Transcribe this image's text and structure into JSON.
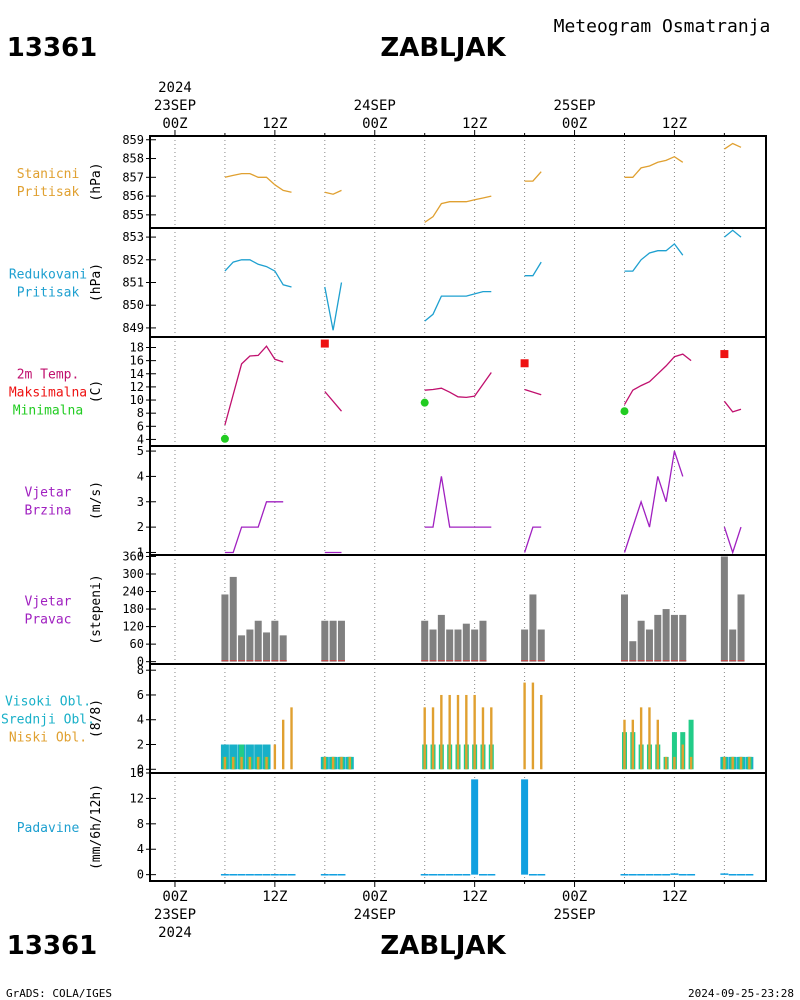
{
  "header": {
    "station_id": "13361",
    "station_name": "ZABLJAK",
    "product": "Meteogram Osmatranja"
  },
  "footer": {
    "station_id": "13361",
    "station_name": "ZABLJAK",
    "credit": "GrADS: COLA/IGES",
    "timestamp": "2024-09-25-23:28"
  },
  "time_axis": {
    "year": "2024",
    "top_labels": [
      {
        "hour": 0,
        "label": "00Z",
        "date": "23SEP",
        "year": "2024"
      },
      {
        "hour": 12,
        "label": "12Z"
      },
      {
        "hour": 24,
        "label": "00Z",
        "date": "24SEP"
      },
      {
        "hour": 36,
        "label": "12Z"
      },
      {
        "hour": 48,
        "label": "00Z",
        "date": "25SEP"
      },
      {
        "hour": 60,
        "label": "12Z"
      }
    ],
    "bottom_labels": [
      {
        "hour": 0,
        "label": "00Z",
        "date": "23SEP",
        "year": "2024"
      },
      {
        "hour": 12,
        "label": "12Z"
      },
      {
        "hour": 24,
        "label": "00Z",
        "date": "24SEP"
      },
      {
        "hour": 36,
        "label": "12Z"
      },
      {
        "hour": 48,
        "label": "00Z",
        "date": "25SEP"
      },
      {
        "hour": 60,
        "label": "12Z"
      }
    ],
    "range_hours": [
      -3,
      71
    ]
  },
  "colors": {
    "station_pressure": "#e0a030",
    "sea_pressure": "#1ea0d0",
    "temp": "#c0106e",
    "tmax": "#ee1111",
    "tmin": "#22cc22",
    "wind": "#a020c0",
    "wind_bar": "#808080",
    "high_cloud": "#18b0c8",
    "mid_cloud": "#22cc88",
    "low_cloud": "#e0a030",
    "precip": "#10a0e0"
  },
  "chart_data": [
    {
      "type": "line",
      "id": "p1",
      "labels": [
        "Stanicni",
        "Pritisak"
      ],
      "label_colors": [
        "#e0a030",
        "#e0a030"
      ],
      "unit": "(hPa)",
      "ylim": [
        854.3,
        859.2
      ],
      "ticks": [
        855,
        856,
        857,
        858,
        859
      ],
      "series": [
        {
          "color": "#e0a030",
          "segments": [
            [
              [
                6,
                857.0
              ],
              [
                7,
                857.1
              ],
              [
                8,
                857.2
              ],
              [
                9,
                857.2
              ],
              [
                10,
                857.0
              ],
              [
                11,
                857.0
              ],
              [
                12,
                856.6
              ],
              [
                13,
                856.3
              ],
              [
                14,
                856.2
              ]
            ],
            [
              [
                18,
                856.2
              ],
              [
                19,
                856.1
              ],
              [
                20,
                856.3
              ]
            ],
            [
              [
                30,
                854.6
              ],
              [
                31,
                854.9
              ],
              [
                32,
                855.6
              ],
              [
                33,
                855.7
              ],
              [
                34,
                855.7
              ],
              [
                35,
                855.7
              ],
              [
                36,
                855.8
              ],
              [
                37,
                855.9
              ],
              [
                38,
                856.0
              ]
            ],
            [
              [
                42,
                856.8
              ],
              [
                43,
                856.8
              ],
              [
                44,
                857.3
              ]
            ],
            [
              [
                54,
                857.0
              ],
              [
                55,
                857.0
              ],
              [
                56,
                857.5
              ],
              [
                57,
                857.6
              ],
              [
                58,
                857.8
              ],
              [
                59,
                857.9
              ],
              [
                60,
                858.1
              ],
              [
                61,
                857.8
              ]
            ],
            [
              [
                66,
                858.5
              ],
              [
                67,
                858.8
              ],
              [
                68,
                858.6
              ]
            ]
          ]
        }
      ]
    },
    {
      "type": "line",
      "id": "p2",
      "labels": [
        "Redukovani",
        "Pritisak"
      ],
      "label_colors": [
        "#1ea0d0",
        "#1ea0d0"
      ],
      "unit": "(hPa)",
      "ylim": [
        848.6,
        853.4
      ],
      "ticks": [
        849,
        850,
        851,
        852,
        853
      ],
      "series": [
        {
          "color": "#1ea0d0",
          "segments": [
            [
              [
                6,
                851.5
              ],
              [
                7,
                851.9
              ],
              [
                8,
                852.0
              ],
              [
                9,
                852.0
              ],
              [
                10,
                851.8
              ],
              [
                11,
                851.7
              ],
              [
                12,
                851.5
              ],
              [
                13,
                850.9
              ],
              [
                14,
                850.8
              ]
            ],
            [
              [
                18,
                850.8
              ],
              [
                19,
                848.9
              ],
              [
                20,
                851.0
              ]
            ],
            [
              [
                30,
                849.3
              ],
              [
                31,
                849.6
              ],
              [
                32,
                850.4
              ],
              [
                33,
                850.4
              ],
              [
                34,
                850.4
              ],
              [
                35,
                850.4
              ],
              [
                36,
                850.5
              ],
              [
                37,
                850.6
              ],
              [
                38,
                850.6
              ]
            ],
            [
              [
                42,
                851.3
              ],
              [
                43,
                851.3
              ],
              [
                44,
                851.9
              ]
            ],
            [
              [
                54,
                851.5
              ],
              [
                55,
                851.5
              ],
              [
                56,
                852.0
              ],
              [
                57,
                852.3
              ],
              [
                58,
                852.4
              ],
              [
                59,
                852.4
              ],
              [
                60,
                852.7
              ],
              [
                61,
                852.2
              ]
            ],
            [
              [
                66,
                853.0
              ],
              [
                67,
                853.3
              ],
              [
                68,
                853.0
              ]
            ]
          ]
        }
      ]
    },
    {
      "type": "line",
      "id": "p3",
      "labels": [
        "2m Temp.",
        "Maksimalna",
        "Minimalna"
      ],
      "label_colors": [
        "#c0106e",
        "#ee1111",
        "#22cc22"
      ],
      "unit": "(C)",
      "ylim": [
        3.0,
        19.6
      ],
      "ticks": [
        4,
        6,
        8,
        10,
        12,
        14,
        16,
        18
      ],
      "series": [
        {
          "color": "#c0106e",
          "segments": [
            [
              [
                6,
                6.2
              ],
              [
                8,
                15.5
              ],
              [
                9,
                16.7
              ],
              [
                10,
                16.8
              ],
              [
                11,
                18.2
              ],
              [
                12,
                16.2
              ],
              [
                13,
                15.8
              ]
            ],
            [
              [
                18,
                11.3
              ],
              [
                20,
                8.3
              ]
            ],
            [
              [
                30,
                11.5
              ],
              [
                31,
                11.6
              ],
              [
                32,
                11.8
              ],
              [
                33,
                11.2
              ],
              [
                34,
                10.5
              ],
              [
                35,
                10.4
              ],
              [
                36,
                10.6
              ],
              [
                38,
                14.2
              ]
            ],
            [
              [
                42,
                11.6
              ],
              [
                44,
                10.8
              ]
            ],
            [
              [
                54,
                9.3
              ],
              [
                55,
                11.5
              ],
              [
                56,
                12.2
              ],
              [
                57,
                12.8
              ],
              [
                58,
                14.0
              ],
              [
                59,
                15.2
              ],
              [
                60,
                16.6
              ],
              [
                61,
                17.0
              ],
              [
                62,
                16.0
              ]
            ],
            [
              [
                66,
                9.8
              ],
              [
                67,
                8.2
              ],
              [
                68,
                8.6
              ]
            ]
          ]
        }
      ],
      "tmax_points": [
        [
          18,
          18.6
        ],
        [
          42,
          15.6
        ],
        [
          66,
          17.0
        ]
      ],
      "tmin_points": [
        [
          6,
          4.1
        ],
        [
          30,
          9.6
        ],
        [
          54,
          8.3
        ]
      ]
    },
    {
      "type": "line",
      "id": "p4",
      "labels": [
        "Vjetar",
        "Brzina"
      ],
      "label_colors": [
        "#a020c0",
        "#a020c0"
      ],
      "unit": "(m/s)",
      "ylim": [
        0.9,
        5.2
      ],
      "ticks": [
        1,
        2,
        3,
        4,
        5
      ],
      "series": [
        {
          "color": "#a020c0",
          "segments": [
            [
              [
                6,
                1
              ],
              [
                7,
                1
              ],
              [
                8,
                2
              ],
              [
                9,
                2
              ],
              [
                10,
                2
              ],
              [
                11,
                3
              ],
              [
                12,
                3
              ],
              [
                13,
                3
              ]
            ],
            [
              [
                18,
                1
              ],
              [
                19,
                1
              ],
              [
                20,
                1
              ]
            ],
            [
              [
                30,
                2
              ],
              [
                31,
                2
              ],
              [
                32,
                4
              ],
              [
                33,
                2
              ],
              [
                34,
                2
              ],
              [
                35,
                2
              ],
              [
                36,
                2
              ],
              [
                37,
                2
              ],
              [
                38,
                2
              ]
            ],
            [
              [
                42,
                1
              ],
              [
                43,
                2
              ],
              [
                44,
                2
              ]
            ],
            [
              [
                54,
                1
              ],
              [
                56,
                3
              ],
              [
                57,
                2
              ],
              [
                58,
                4
              ],
              [
                59,
                3
              ],
              [
                60,
                5
              ],
              [
                61,
                4
              ]
            ],
            [
              [
                66,
                2
              ],
              [
                67,
                1
              ],
              [
                68,
                2
              ]
            ]
          ]
        }
      ]
    },
    {
      "type": "bar",
      "id": "p5",
      "labels": [
        "Vjetar",
        "Pravac"
      ],
      "label_colors": [
        "#a020c0",
        "#a020c0"
      ],
      "unit": "(stepeni)",
      "ylim": [
        -8,
        365
      ],
      "ticks": [
        0,
        60,
        120,
        180,
        240,
        300,
        360
      ],
      "x": [
        6,
        7,
        8,
        9,
        10,
        11,
        12,
        13,
        18,
        19,
        20,
        30,
        31,
        32,
        33,
        34,
        35,
        36,
        37,
        42,
        43,
        44,
        54,
        55,
        56,
        57,
        58,
        59,
        60,
        61,
        66,
        67,
        68
      ],
      "values": [
        230,
        290,
        90,
        110,
        140,
        100,
        140,
        90,
        140,
        140,
        140,
        140,
        110,
        160,
        110,
        110,
        130,
        110,
        140,
        110,
        230,
        110,
        230,
        70,
        140,
        110,
        160,
        180,
        160,
        160,
        360,
        110,
        230
      ],
      "bar_color": "#808080"
    },
    {
      "type": "bar",
      "id": "p6",
      "labels": [
        "Visoki Obl.",
        "Srednji Obl.",
        "Niski Obl."
      ],
      "label_colors": [
        "#18b0c8",
        "#18b0c8",
        "#e0a030"
      ],
      "unit": "(8/8)",
      "ylim": [
        -0.3,
        8.5
      ],
      "ticks": [
        0,
        2,
        4,
        6,
        8
      ],
      "x": [
        6,
        7,
        8,
        9,
        10,
        11,
        12,
        13,
        14,
        18,
        19,
        20,
        21,
        30,
        31,
        32,
        33,
        34,
        35,
        36,
        37,
        38,
        42,
        43,
        44,
        54,
        55,
        56,
        57,
        58,
        59,
        60,
        61,
        62,
        66,
        67,
        68,
        69
      ],
      "series": [
        {
          "name": "Visoki Obl.",
          "values": [
            2,
            2,
            2,
            2,
            2,
            2,
            0,
            0,
            0,
            1,
            1,
            1,
            1,
            0,
            0,
            0,
            0,
            0,
            0,
            0,
            0,
            0,
            0,
            0,
            0,
            0,
            0,
            0,
            0,
            0,
            0,
            0,
            0,
            0,
            1,
            1,
            1,
            1
          ]
        },
        {
          "name": "Srednji Obl.",
          "values": [
            1,
            1,
            2,
            1,
            1,
            1,
            0,
            0,
            0,
            1,
            1,
            1,
            1,
            2,
            2,
            2,
            2,
            2,
            2,
            2,
            2,
            2,
            0,
            0,
            0,
            3,
            3,
            2,
            2,
            2,
            1,
            3,
            3,
            4,
            1,
            1,
            1,
            1
          ]
        },
        {
          "name": "Niski Obl.",
          "values": [
            1,
            1,
            1,
            1,
            1,
            1,
            2,
            4,
            5,
            1,
            1,
            1,
            1,
            5,
            5,
            6,
            6,
            6,
            6,
            6,
            5,
            5,
            7,
            7,
            6,
            4,
            4,
            5,
            5,
            4,
            1,
            1,
            2,
            1,
            1,
            1,
            1,
            1
          ]
        }
      ]
    },
    {
      "type": "bar",
      "id": "p7",
      "labels": [
        "Padavine"
      ],
      "label_colors": [
        "#1ea0d0"
      ],
      "unit": "(mm/6h/12h)",
      "ylim": [
        -1,
        16
      ],
      "ticks": [
        0,
        4,
        8,
        12,
        16
      ],
      "x": [
        6,
        7,
        8,
        9,
        10,
        11,
        12,
        13,
        14,
        18,
        19,
        20,
        30,
        31,
        32,
        33,
        34,
        35,
        36,
        37,
        38,
        42,
        43,
        44,
        54,
        55,
        56,
        57,
        58,
        59,
        60,
        61,
        62,
        66,
        67,
        68,
        69
      ],
      "values": [
        0.1,
        0.1,
        0.1,
        0.1,
        0.1,
        0.1,
        0.1,
        0.1,
        0.1,
        0.1,
        0.1,
        0.1,
        0.1,
        0.1,
        0.1,
        0.1,
        0.1,
        0.1,
        15,
        0.1,
        0.1,
        15,
        0.1,
        0.1,
        0.1,
        0.1,
        0.1,
        0.1,
        0.1,
        0.1,
        0.2,
        0.1,
        0.1,
        0.2,
        0.1,
        0.1,
        0.1
      ]
    }
  ]
}
